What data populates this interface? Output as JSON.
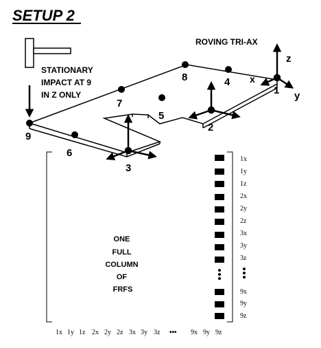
{
  "title": "SETUP 2",
  "roving_label": "ROVING TRI-AX",
  "stationary_label": [
    "STATIONARY",
    "IMPACT AT 9",
    "IN Z ONLY"
  ],
  "axes": {
    "z": "z",
    "x": "x",
    "y": "y"
  },
  "points": [
    "1",
    "2",
    "3",
    "4",
    "5",
    "6",
    "7",
    "8",
    "9"
  ],
  "matrix_label": [
    "ONE",
    "FULL",
    "COLUMN",
    "OF",
    "FRFS"
  ],
  "row_labels": [
    "1x",
    "1y",
    "1z",
    "2x",
    "2y",
    "2z",
    "3x",
    "3y",
    "3z",
    "9x",
    "9y",
    "9z"
  ],
  "col_labels": [
    "1x",
    "1y",
    "1z",
    "2x",
    "2y",
    "2z",
    "3x",
    "3y",
    "3z",
    "9x",
    "9y",
    "9z"
  ],
  "ellipsis": "•••"
}
